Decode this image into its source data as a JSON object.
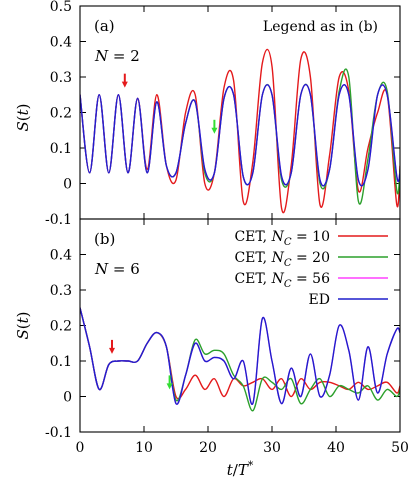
{
  "chart_data": [
    {
      "type": "line",
      "panel_label": "(a)",
      "annotation": "N = 2",
      "legend_note": "Legend as in (b)",
      "ylabel": "S(t)",
      "xlim": [
        0,
        50
      ],
      "ylim": [
        -0.1,
        0.5
      ],
      "x_ticks": [],
      "y_ticks": [
        "-0.1",
        "0",
        "0.1",
        "0.2",
        "0.3",
        "0.4",
        "0.5"
      ],
      "arrows": [
        {
          "x": 7,
          "color": "#e41a1c"
        },
        {
          "x": 21,
          "color": "#33dd33"
        }
      ],
      "series": [
        {
          "name": "CET, N_C = 10",
          "color": "#e41a1c",
          "x": [
            0,
            1.5,
            3,
            4.5,
            6,
            7.5,
            9,
            10.5,
            12,
            13.5,
            15,
            16.5,
            18,
            19.5,
            21,
            22.5,
            24,
            25.5,
            27,
            28.5,
            30,
            31.5,
            33,
            34.5,
            36,
            37.5,
            39,
            40.5,
            42,
            43.5,
            45,
            46.5,
            48,
            49.5,
            50
          ],
          "y": [
            0.25,
            0.03,
            0.25,
            0.03,
            0.25,
            0.03,
            0.24,
            0.04,
            0.25,
            0.05,
            0.01,
            0.2,
            0.25,
            0.0,
            0.03,
            0.27,
            0.29,
            -0.05,
            0.06,
            0.34,
            0.33,
            -0.07,
            0.05,
            0.35,
            0.3,
            -0.06,
            0.08,
            0.3,
            0.26,
            -0.02,
            0.1,
            0.2,
            0.25,
            -0.06,
            0.05
          ]
        },
        {
          "name": "CET, N_C = 20",
          "color": "#2ca02c",
          "x": [
            0,
            1.5,
            3,
            4.5,
            6,
            7.5,
            9,
            10.5,
            12,
            13.5,
            15,
            16.5,
            18,
            19.5,
            21,
            22.5,
            24,
            25.5,
            27,
            28.5,
            30,
            31.5,
            33,
            34.5,
            36,
            37.5,
            39,
            40.5,
            42,
            43.5,
            45,
            46.5,
            48,
            49.5,
            50
          ],
          "y": [
            0.25,
            0.03,
            0.25,
            0.03,
            0.25,
            0.03,
            0.24,
            0.03,
            0.23,
            0.05,
            0.03,
            0.17,
            0.23,
            0.03,
            0.03,
            0.24,
            0.25,
            0.02,
            0.03,
            0.25,
            0.25,
            0.01,
            0.03,
            0.25,
            0.25,
            0.0,
            0.04,
            0.26,
            0.3,
            -0.05,
            0.07,
            0.25,
            0.26,
            -0.02,
            0.04
          ]
        },
        {
          "name": "CET, N_C = 56",
          "color": "#ff40ff",
          "x": [
            0,
            1.5,
            3,
            4.5,
            6,
            7.5,
            9,
            10.5,
            12,
            13.5,
            15,
            16.5,
            18,
            19.5,
            21,
            22.5,
            24,
            25.5,
            27,
            28.5,
            30,
            31.5,
            33,
            34.5,
            36,
            37.5,
            39,
            40.5,
            42,
            43.5,
            45,
            46.5,
            48,
            49.5,
            50
          ],
          "y": [
            0.25,
            0.03,
            0.25,
            0.03,
            0.25,
            0.03,
            0.24,
            0.03,
            0.23,
            0.05,
            0.03,
            0.17,
            0.23,
            0.04,
            0.03,
            0.24,
            0.25,
            0.02,
            0.03,
            0.25,
            0.25,
            0.02,
            0.03,
            0.25,
            0.25,
            0.01,
            0.04,
            0.25,
            0.25,
            0.01,
            0.04,
            0.25,
            0.25,
            0.02,
            0.03
          ]
        },
        {
          "name": "ED",
          "color": "#1f1fcc",
          "x": [
            0,
            1.5,
            3,
            4.5,
            6,
            7.5,
            9,
            10.5,
            12,
            13.5,
            15,
            16.5,
            18,
            19.5,
            21,
            22.5,
            24,
            25.5,
            27,
            28.5,
            30,
            31.5,
            33,
            34.5,
            36,
            37.5,
            39,
            40.5,
            42,
            43.5,
            45,
            46.5,
            48,
            49.5,
            50
          ],
          "y": [
            0.25,
            0.03,
            0.25,
            0.03,
            0.25,
            0.03,
            0.24,
            0.03,
            0.23,
            0.05,
            0.03,
            0.17,
            0.23,
            0.04,
            0.03,
            0.24,
            0.25,
            0.02,
            0.03,
            0.25,
            0.25,
            0.02,
            0.03,
            0.25,
            0.25,
            0.01,
            0.04,
            0.25,
            0.25,
            0.01,
            0.04,
            0.25,
            0.25,
            0.02,
            0.03
          ]
        }
      ]
    },
    {
      "type": "line",
      "panel_label": "(b)",
      "annotation": "N = 6",
      "xlabel": "t/T*",
      "ylabel": "S(t)",
      "xlim": [
        0,
        50
      ],
      "ylim": [
        -0.1,
        0.5
      ],
      "x_ticks": [
        "0",
        "10",
        "20",
        "30",
        "40",
        "50"
      ],
      "y_ticks": [
        "-0.1",
        "0",
        "0.1",
        "0.2",
        "0.3",
        "0.4"
      ],
      "legend_position": "top-right",
      "legend": [
        {
          "label": "CET, N_C = 10",
          "color": "#e41a1c"
        },
        {
          "label": "CET, N_C = 20",
          "color": "#2ca02c"
        },
        {
          "label": "CET, N_C = 56",
          "color": "#ff40ff"
        },
        {
          "label": "ED",
          "color": "#1f1fcc"
        }
      ],
      "arrows": [
        {
          "x": 5,
          "color": "#e41a1c"
        },
        {
          "x": 14,
          "color": "#33dd33"
        }
      ],
      "series": [
        {
          "name": "CET, N_C = 10",
          "color": "#e41a1c",
          "x": [
            0,
            1.5,
            3,
            4.5,
            6,
            7.5,
            9,
            10.5,
            12,
            13.5,
            15,
            16.5,
            18,
            19.5,
            21,
            22.5,
            24,
            25.5,
            27,
            28.5,
            30,
            31.5,
            33,
            34.5,
            36,
            37.5,
            39,
            40.5,
            42,
            43.5,
            45,
            46.5,
            48,
            49.5,
            50
          ],
          "y": [
            0.25,
            0.14,
            0.02,
            0.09,
            0.1,
            0.1,
            0.1,
            0.15,
            0.18,
            0.14,
            0.0,
            0.02,
            0.06,
            0.02,
            0.05,
            0.0,
            0.05,
            0.03,
            0.04,
            0.05,
            0.02,
            0.05,
            0.0,
            0.05,
            0.02,
            0.04,
            0.04,
            0.03,
            0.02,
            0.04,
            0.02,
            0.03,
            0.04,
            0.01,
            0.03
          ]
        },
        {
          "name": "CET, N_C = 20",
          "color": "#2ca02c",
          "x": [
            0,
            1.5,
            3,
            4.5,
            6,
            7.5,
            9,
            10.5,
            12,
            13.5,
            15,
            16.5,
            18,
            19.5,
            21,
            22.5,
            24,
            25.5,
            27,
            28.5,
            30,
            31.5,
            33,
            34.5,
            36,
            37.5,
            39,
            40.5,
            42,
            43.5,
            45,
            46.5,
            48,
            49.5,
            50
          ],
          "y": [
            0.25,
            0.14,
            0.02,
            0.09,
            0.1,
            0.1,
            0.1,
            0.15,
            0.18,
            0.14,
            -0.01,
            0.06,
            0.16,
            0.12,
            0.13,
            0.12,
            0.06,
            0.03,
            -0.04,
            0.05,
            0.04,
            0.02,
            0.05,
            -0.02,
            0.02,
            0.05,
            0.0,
            0.03,
            0.02,
            0.01,
            0.03,
            -0.01,
            0.02,
            0.0,
            0.02
          ]
        },
        {
          "name": "CET, N_C = 56",
          "color": "#ff40ff",
          "x": [
            0,
            1.5,
            3,
            4.5,
            6,
            7.5,
            9,
            10.5,
            12,
            13.5,
            15,
            16.5,
            18,
            19.5,
            21,
            22.5,
            24,
            25.5,
            27,
            28.5,
            30,
            31.5,
            33,
            34.5,
            36,
            37.5,
            39,
            40.5,
            42,
            43.5,
            45,
            46.5,
            48,
            49.5,
            50
          ],
          "y": [
            0.25,
            0.14,
            0.02,
            0.09,
            0.1,
            0.1,
            0.1,
            0.15,
            0.18,
            0.14,
            -0.02,
            0.06,
            0.15,
            0.1,
            0.11,
            0.1,
            0.05,
            0.1,
            -0.02,
            0.22,
            0.1,
            -0.02,
            0.08,
            0.0,
            0.12,
            0.0,
            0.06,
            0.2,
            0.13,
            -0.01,
            0.14,
            0.01,
            0.12,
            0.19,
            0.18
          ]
        },
        {
          "name": "ED",
          "color": "#1f1fcc",
          "x": [
            0,
            1.5,
            3,
            4.5,
            6,
            7.5,
            9,
            10.5,
            12,
            13.5,
            15,
            16.5,
            18,
            19.5,
            21,
            22.5,
            24,
            25.5,
            27,
            28.5,
            30,
            31.5,
            33,
            34.5,
            36,
            37.5,
            39,
            40.5,
            42,
            43.5,
            45,
            46.5,
            48,
            49.5,
            50
          ],
          "y": [
            0.25,
            0.14,
            0.02,
            0.09,
            0.1,
            0.1,
            0.1,
            0.15,
            0.18,
            0.14,
            -0.02,
            0.06,
            0.15,
            0.1,
            0.11,
            0.1,
            0.05,
            0.1,
            -0.02,
            0.22,
            0.1,
            -0.02,
            0.08,
            0.0,
            0.12,
            0.0,
            0.06,
            0.2,
            0.13,
            -0.01,
            0.14,
            0.01,
            0.12,
            0.19,
            0.18
          ]
        }
      ]
    }
  ]
}
